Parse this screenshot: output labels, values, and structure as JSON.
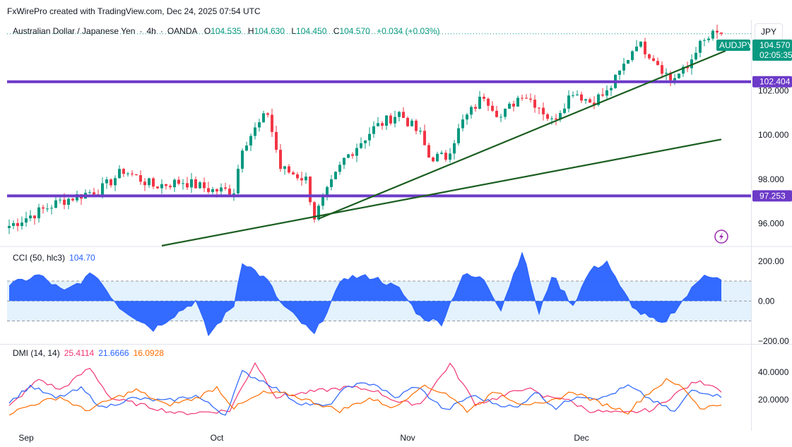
{
  "attribution": "FxWirePro created with TradingView.com, Dec 24, 2025 07:54 UTC",
  "symbol": {
    "name": "Australian Dollar / Japanese Yen",
    "interval": "4h",
    "exchange": "OANDA",
    "o_label": "O",
    "o_value": "104.535",
    "h_label": "H",
    "h_value": "104.630",
    "l_label": "L",
    "l_value": "104.450",
    "c_label": "C",
    "c_value": "104.570",
    "change": "+0.034 (+0.03%)"
  },
  "currency_button": "JPY",
  "price_tags": {
    "ticker": "AUDJPY",
    "last_price": "104.570",
    "countdown": "02:05:35",
    "level_high": "102.404",
    "level_low": "97.253"
  },
  "colors": {
    "up": "#089981",
    "down": "#f23645",
    "level_line": "#6c3ac8",
    "trendline": "#1b5e20",
    "cci": "#2962ff",
    "cci_band": "#e3f2fd",
    "di_plus": "#2962ff",
    "di_minus": "#f23672",
    "adx": "#ff6d00"
  },
  "cci_header": {
    "name": "CCI (50, hlc3)",
    "value": "104.70"
  },
  "dmi_header": {
    "name": "DMI (14, 14)",
    "v1": "25.4114",
    "v2": "21.6666",
    "v3": "16.0928"
  },
  "chart_data": [
    {
      "type": "candlestick",
      "title": "Australian Dollar / Japanese Yen · 4h · OANDA",
      "x_labels": [
        "Sep",
        "Oct",
        "Nov",
        "Dec"
      ],
      "y_ticks": [
        "96.000",
        "98.000",
        "100.000",
        "102.000"
      ],
      "ylim": [
        95.0,
        105.2
      ],
      "horizontal_levels": [
        102.404,
        97.253
      ],
      "last_price": 104.57,
      "trendlines": [
        {
          "from": {
            "bar": 73,
            "price": 96.22
          },
          "to": {
            "bar": 169,
            "price": 103.8
          }
        },
        {
          "from": {
            "bar": 36,
            "price": 95.0
          },
          "to": {
            "bar": 168,
            "price": 99.8
          }
        }
      ],
      "anchors": [
        [
          0,
          95.9
        ],
        [
          12,
          97.0
        ],
        [
          22,
          97.6
        ],
        [
          27,
          98.4
        ],
        [
          34,
          97.7
        ],
        [
          41,
          97.9
        ],
        [
          48,
          97.5
        ],
        [
          53,
          97.5
        ],
        [
          55,
          99.5
        ],
        [
          61,
          101.0
        ],
        [
          64,
          98.5
        ],
        [
          70,
          98.0
        ],
        [
          72,
          96.3
        ],
        [
          79,
          98.9
        ],
        [
          86,
          100.3
        ],
        [
          92,
          101.0
        ],
        [
          97,
          100.0
        ],
        [
          99,
          99.0
        ],
        [
          103,
          99.0
        ],
        [
          107,
          100.6
        ],
        [
          112,
          101.8
        ],
        [
          116,
          100.8
        ],
        [
          121,
          101.9
        ],
        [
          125,
          101.3
        ],
        [
          128,
          100.6
        ],
        [
          133,
          102.0
        ],
        [
          137,
          101.5
        ],
        [
          141,
          101.9
        ],
        [
          144,
          102.8
        ],
        [
          148,
          104.2
        ],
        [
          152,
          103.5
        ],
        [
          156,
          102.5
        ],
        [
          160,
          103.0
        ],
        [
          162,
          103.9
        ],
        [
          166,
          104.5
        ],
        [
          168,
          104.57
        ]
      ]
    },
    {
      "type": "area",
      "title": "CCI (50, hlc3)",
      "y_ticks": [
        "200.00",
        "0.00",
        "−200.00"
      ],
      "ylim": [
        -215,
        270
      ],
      "bands": [
        100,
        -100
      ],
      "last_value": 104.7,
      "anchors": [
        [
          0,
          80
        ],
        [
          7,
          130
        ],
        [
          13,
          45
        ],
        [
          20,
          140
        ],
        [
          26,
          -30
        ],
        [
          34,
          -140
        ],
        [
          41,
          -40
        ],
        [
          44,
          0
        ],
        [
          47,
          -170
        ],
        [
          53,
          -20
        ],
        [
          55,
          200
        ],
        [
          61,
          100
        ],
        [
          64,
          -10
        ],
        [
          72,
          -170
        ],
        [
          79,
          120
        ],
        [
          86,
          120
        ],
        [
          92,
          60
        ],
        [
          97,
          -80
        ],
        [
          102,
          -110
        ],
        [
          107,
          130
        ],
        [
          112,
          110
        ],
        [
          116,
          -40
        ],
        [
          121,
          250
        ],
        [
          125,
          -70
        ],
        [
          128,
          130
        ],
        [
          133,
          -20
        ],
        [
          137,
          150
        ],
        [
          141,
          200
        ],
        [
          144,
          70
        ],
        [
          148,
          -50
        ],
        [
          154,
          -120
        ],
        [
          160,
          30
        ],
        [
          164,
          140
        ],
        [
          168,
          104.7
        ]
      ]
    },
    {
      "type": "line",
      "title": "DMI (14, 14)",
      "y_ticks": [
        "40.0000",
        "20.0000"
      ],
      "ylim": [
        0,
        60
      ],
      "series": [
        {
          "name": "",
          "color": "#f23672",
          "last_value": 25.4114,
          "anchors": [
            [
              0,
              15
            ],
            [
              7,
              35
            ],
            [
              12,
              27
            ],
            [
              19,
              43
            ],
            [
              24,
              21
            ],
            [
              30,
              17
            ],
            [
              40,
              10
            ],
            [
              46,
              11
            ],
            [
              52,
              12
            ],
            [
              58,
              47
            ],
            [
              63,
              22
            ],
            [
              72,
              26
            ],
            [
              80,
              29
            ],
            [
              86,
              27
            ],
            [
              92,
              18
            ],
            [
              97,
              17
            ],
            [
              104,
              46
            ],
            [
              110,
              17
            ],
            [
              116,
              22
            ],
            [
              122,
              29
            ],
            [
              126,
              22
            ],
            [
              130,
              22
            ],
            [
              137,
              12
            ],
            [
              145,
              10
            ],
            [
              152,
              13
            ],
            [
              157,
              24
            ],
            [
              162,
              33
            ],
            [
              166,
              31
            ],
            [
              168,
              25.4114
            ]
          ]
        },
        {
          "name": "",
          "color": "#2962ff",
          "last_value": 21.6666,
          "anchors": [
            [
              0,
              18
            ],
            [
              5,
              30
            ],
            [
              11,
              21
            ],
            [
              17,
              28
            ],
            [
              22,
              14
            ],
            [
              29,
              21
            ],
            [
              37,
              19
            ],
            [
              44,
              23
            ],
            [
              51,
              9
            ],
            [
              55,
              40
            ],
            [
              61,
              32
            ],
            [
              68,
              18
            ],
            [
              75,
              15
            ],
            [
              80,
              30
            ],
            [
              86,
              32
            ],
            [
              91,
              21
            ],
            [
              96,
              30
            ],
            [
              103,
              12
            ],
            [
              109,
              23
            ],
            [
              115,
              17
            ],
            [
              120,
              14
            ],
            [
              124,
              26
            ],
            [
              129,
              14
            ],
            [
              134,
              23
            ],
            [
              140,
              21
            ],
            [
              146,
              30
            ],
            [
              152,
              19
            ],
            [
              157,
              11
            ],
            [
              161,
              27
            ],
            [
              165,
              25
            ],
            [
              168,
              21.6666
            ]
          ]
        },
        {
          "name": "",
          "color": "#ff6d00",
          "last_value": 16.0928,
          "anchors": [
            [
              0,
              10
            ],
            [
              6,
              17
            ],
            [
              12,
              22
            ],
            [
              18,
              12
            ],
            [
              24,
              20
            ],
            [
              30,
              27
            ],
            [
              37,
              16
            ],
            [
              44,
              21
            ],
            [
              49,
              29
            ],
            [
              53,
              14
            ],
            [
              60,
              25
            ],
            [
              66,
              24
            ],
            [
              72,
              18
            ],
            [
              78,
              12
            ],
            [
              85,
              21
            ],
            [
              91,
              14
            ],
            [
              97,
              30
            ],
            [
              103,
              25
            ],
            [
              108,
              12
            ],
            [
              115,
              26
            ],
            [
              120,
              18
            ],
            [
              126,
              16
            ],
            [
              133,
              26
            ],
            [
              139,
              18
            ],
            [
              146,
              11
            ],
            [
              150,
              23
            ],
            [
              155,
              34
            ],
            [
              159,
              29
            ],
            [
              163,
              14
            ],
            [
              168,
              16.0928
            ]
          ]
        }
      ]
    }
  ]
}
